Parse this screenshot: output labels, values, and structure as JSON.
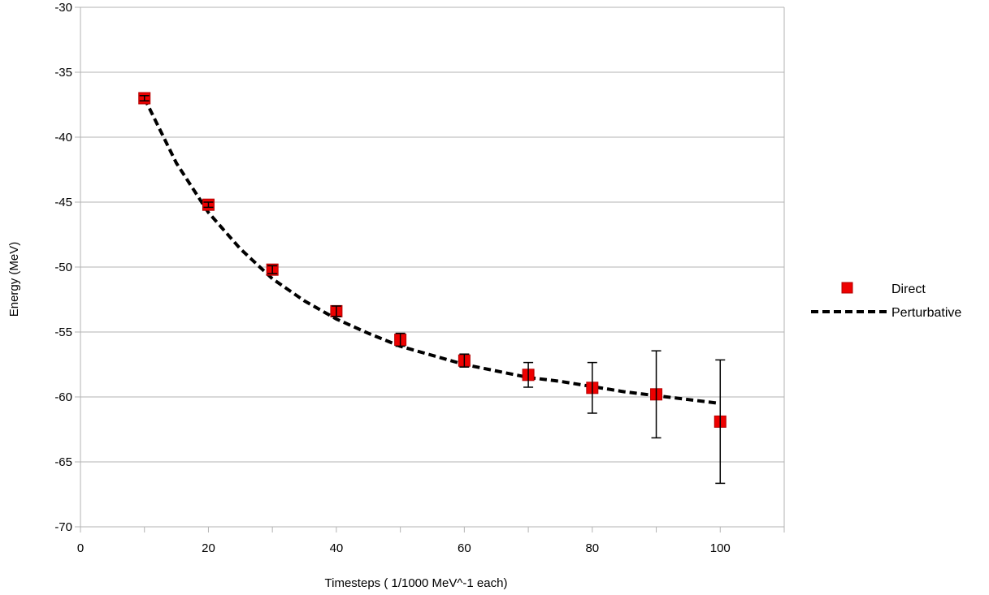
{
  "chart_data": {
    "type": "scatter",
    "xlabel": "Timesteps ( 1/1000 MeV^-1 each)",
    "ylabel": "Energy (MeV)",
    "xlim": [
      0,
      110
    ],
    "ylim": [
      -70,
      -30
    ],
    "x_ticks": [
      0,
      20,
      40,
      60,
      80,
      100
    ],
    "y_ticks": [
      -70,
      -65,
      -60,
      -55,
      -50,
      -45,
      -40,
      -35,
      -30
    ],
    "grid": "horizontal",
    "legend_position": "right",
    "series": [
      {
        "name": "Direct",
        "kind": "points-with-error-bars",
        "color": "#ee0000",
        "x": [
          10,
          20,
          30,
          40,
          50,
          60,
          70,
          80,
          90,
          100
        ],
        "y": [
          -37.0,
          -45.2,
          -50.2,
          -53.4,
          -55.6,
          -57.2,
          -58.3,
          -59.3,
          -59.8,
          -61.9
        ],
        "err": [
          0.2,
          0.2,
          0.3,
          0.4,
          0.5,
          0.5,
          0.95,
          1.95,
          3.35,
          4.75
        ]
      },
      {
        "name": "Perturbative",
        "kind": "dashed-line",
        "color": "#000000",
        "x": [
          10,
          15,
          20,
          25,
          30,
          35,
          40,
          45,
          50,
          55,
          60,
          65,
          70,
          75,
          80,
          85,
          90,
          95,
          100
        ],
        "y": [
          -37.0,
          -42.0,
          -45.8,
          -48.6,
          -50.9,
          -52.6,
          -54.0,
          -55.1,
          -56.1,
          -56.8,
          -57.5,
          -58.0,
          -58.5,
          -58.8,
          -59.2,
          -59.6,
          -59.9,
          -60.2,
          -60.5
        ]
      }
    ]
  }
}
